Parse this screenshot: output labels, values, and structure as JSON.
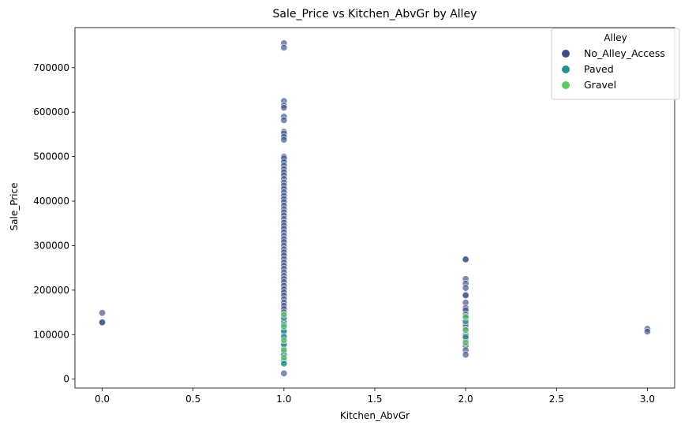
{
  "chart_data": {
    "type": "scatter",
    "title": "Sale_Price vs Kitchen_AbvGr by Alley",
    "xlabel": "Kitchen_AbvGr",
    "ylabel": "Sale_Price",
    "xlim": [
      -0.15,
      3.15
    ],
    "ylim": [
      -20000,
      790000
    ],
    "xticks": [
      0.0,
      0.5,
      1.0,
      1.5,
      2.0,
      2.5,
      3.0
    ],
    "xtick_labels": [
      "0.0",
      "0.5",
      "1.0",
      "1.5",
      "2.0",
      "2.5",
      "3.0"
    ],
    "yticks": [
      0,
      100000,
      200000,
      300000,
      400000,
      500000,
      600000,
      700000
    ],
    "ytick_labels": [
      "0",
      "100000",
      "200000",
      "300000",
      "400000",
      "500000",
      "600000",
      "700000"
    ],
    "grid": false,
    "legend": {
      "title": "Alley",
      "position": "top-right"
    },
    "series": [
      {
        "name": "No_Alley_Access",
        "color": "#3b4f84",
        "points": [
          [
            0,
            149000
          ],
          [
            0,
            128000
          ],
          [
            0,
            127500
          ],
          [
            1,
            755000
          ],
          [
            1,
            745000
          ],
          [
            1,
            625000
          ],
          [
            1,
            615000
          ],
          [
            1,
            610000
          ],
          [
            1,
            590000
          ],
          [
            1,
            582000
          ],
          [
            1,
            556000
          ],
          [
            1,
            552000
          ],
          [
            1,
            545000
          ],
          [
            1,
            538000
          ],
          [
            1,
            500000
          ],
          [
            1,
            496000
          ],
          [
            1,
            488000
          ],
          [
            1,
            480000
          ],
          [
            1,
            472000
          ],
          [
            1,
            465000
          ],
          [
            1,
            458000
          ],
          [
            1,
            450000
          ],
          [
            1,
            442000
          ],
          [
            1,
            435000
          ],
          [
            1,
            428000
          ],
          [
            1,
            420000
          ],
          [
            1,
            412000
          ],
          [
            1,
            405000
          ],
          [
            1,
            398000
          ],
          [
            1,
            390000
          ],
          [
            1,
            382000
          ],
          [
            1,
            375000
          ],
          [
            1,
            368000
          ],
          [
            1,
            360000
          ],
          [
            1,
            352000
          ],
          [
            1,
            345000
          ],
          [
            1,
            338000
          ],
          [
            1,
            330000
          ],
          [
            1,
            322000
          ],
          [
            1,
            315000
          ],
          [
            1,
            308000
          ],
          [
            1,
            300000
          ],
          [
            1,
            292000
          ],
          [
            1,
            285000
          ],
          [
            1,
            278000
          ],
          [
            1,
            270000
          ],
          [
            1,
            262000
          ],
          [
            1,
            255000
          ],
          [
            1,
            248000
          ],
          [
            1,
            240000
          ],
          [
            1,
            232000
          ],
          [
            1,
            225000
          ],
          [
            1,
            218000
          ],
          [
            1,
            210000
          ],
          [
            1,
            202000
          ],
          [
            1,
            195000
          ],
          [
            1,
            188000
          ],
          [
            1,
            180000
          ],
          [
            1,
            172000
          ],
          [
            1,
            165000
          ],
          [
            1,
            158000
          ],
          [
            1,
            150000
          ],
          [
            1,
            142000
          ],
          [
            1,
            135000
          ],
          [
            1,
            128000
          ],
          [
            1,
            120000
          ],
          [
            1,
            112000
          ],
          [
            1,
            105000
          ],
          [
            1,
            98000
          ],
          [
            1,
            90000
          ],
          [
            1,
            82000
          ],
          [
            1,
            75000
          ],
          [
            1,
            68000
          ],
          [
            1,
            60000
          ],
          [
            1,
            52000
          ],
          [
            1,
            45000
          ],
          [
            1,
            37000
          ],
          [
            1,
            13000
          ],
          [
            2,
            270000
          ],
          [
            2,
            269000
          ],
          [
            2,
            225000
          ],
          [
            2,
            215000
          ],
          [
            2,
            205000
          ],
          [
            2,
            190000
          ],
          [
            2,
            188000
          ],
          [
            2,
            172000
          ],
          [
            2,
            160000
          ],
          [
            2,
            155000
          ],
          [
            2,
            145000
          ],
          [
            2,
            138000
          ],
          [
            2,
            125000
          ],
          [
            2,
            118000
          ],
          [
            2,
            112000
          ],
          [
            2,
            100000
          ],
          [
            2,
            92000
          ],
          [
            2,
            85000
          ],
          [
            2,
            75000
          ],
          [
            2,
            65000
          ],
          [
            2,
            55000
          ],
          [
            3,
            113000
          ],
          [
            3,
            107000
          ]
        ]
      },
      {
        "name": "Paved",
        "color": "#21918c",
        "points": [
          [
            1,
            138000
          ],
          [
            1,
            122000
          ],
          [
            1,
            108000
          ],
          [
            1,
            95000
          ],
          [
            1,
            78000
          ],
          [
            1,
            55000
          ],
          [
            1,
            42000
          ],
          [
            1,
            35000
          ],
          [
            2,
            130000
          ],
          [
            2,
            95000
          ]
        ]
      },
      {
        "name": "Gravel",
        "color": "#5ec962",
        "points": [
          [
            1,
            145000
          ],
          [
            1,
            118000
          ],
          [
            1,
            87000
          ],
          [
            1,
            65000
          ],
          [
            1,
            48000
          ],
          [
            2,
            140000
          ],
          [
            2,
            110000
          ],
          [
            2,
            82000
          ]
        ]
      }
    ]
  }
}
